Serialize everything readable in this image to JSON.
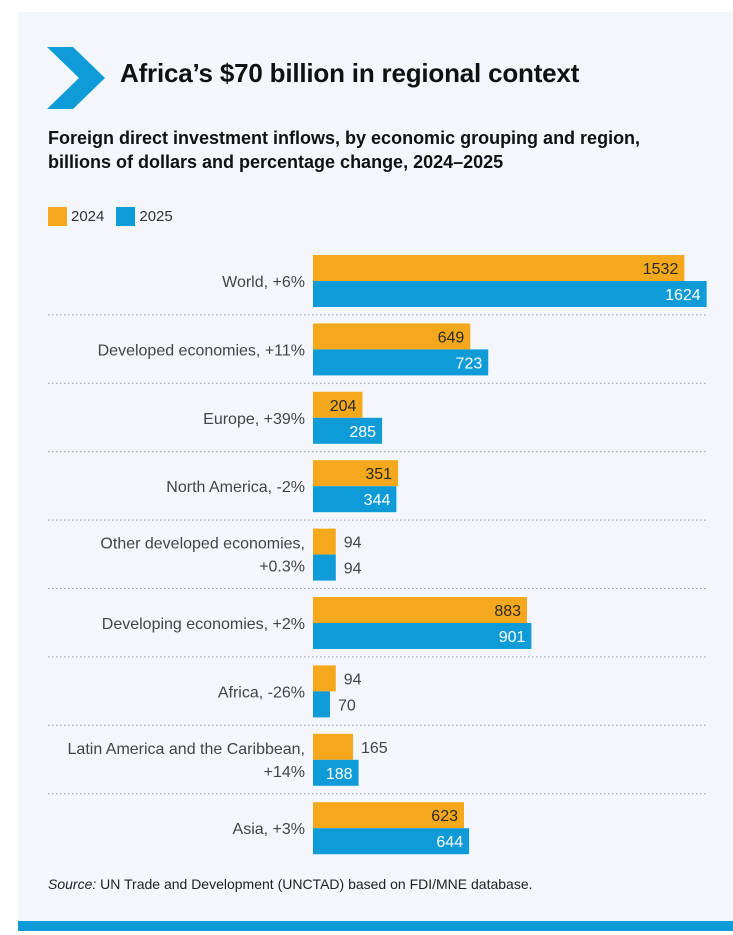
{
  "title": "Africa’s $70 billion in regional context",
  "subtitle": "Foreign direct investment inflows, by economic grouping and region, billions of dollars and percentage change, 2024–2025",
  "source": {
    "label": "Source:",
    "text": " UN Trade and Development (UNCTAD) based on FDI/MNE database."
  },
  "colors": {
    "series_2024": "#f5a81c",
    "series_2025": "#0e9bd8",
    "accent": "#0e9bd8"
  },
  "chart_data": {
    "type": "bar",
    "orientation": "horizontal",
    "categories": [
      [
        "World, +6%"
      ],
      [
        "Developed economies, +11%"
      ],
      [
        "Europe, +39%"
      ],
      [
        "North America, -2%"
      ],
      [
        "Other developed economies,",
        "+0.3%"
      ],
      [
        "Developing economies, +2%"
      ],
      [
        "Africa, -26%"
      ],
      [
        "Latin America and the Caribbean,",
        "+14%"
      ],
      [
        "Asia, +3%"
      ]
    ],
    "series": [
      {
        "name": "2024",
        "values": [
          1532,
          649,
          204,
          351,
          94,
          883,
          94,
          165,
          623
        ]
      },
      {
        "name": "2025",
        "values": [
          1624,
          723,
          285,
          344,
          94,
          901,
          70,
          188,
          644
        ]
      }
    ],
    "xlim": [
      0,
      1650
    ],
    "legend_position": "top-left",
    "grid": false
  }
}
